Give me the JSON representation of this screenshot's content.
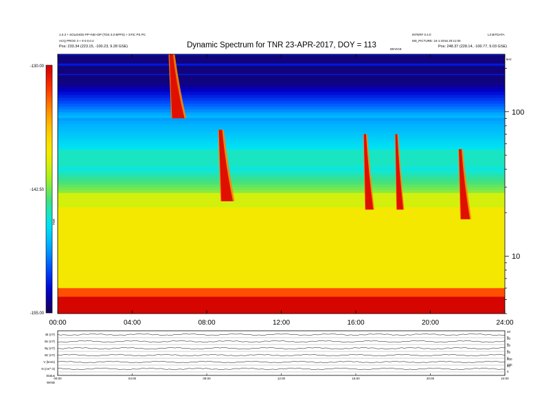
{
  "header": {
    "left_line1": "1.0.3 + SOLIDIOD PP+ND+DP (TDS 3.0 BPPS) + STIC PS PC",
    "left_line2": "ACQ PROG 3 + 9 0.0.0.2",
    "left_line3": "Pos: 233.34 (223.15, -100.23, 9.28 GSE)",
    "right_line1": "INTERF 0.4.0",
    "right_line2": "MS_PICTURE: 24-1-2016 20:11:00",
    "right_line3": "Pos: 248.37 (228.14, -100.77, 9.03 GSE)",
    "right_corner_1": "L3 BITDATA",
    "right_corner_2": "kHz",
    "top_mid_label": "DEVICE"
  },
  "chart_data": [
    {
      "type": "heatmap",
      "title": "Dynamic Spectrum for TNR 23-APR-2017, DOY = 113",
      "xlabel": "",
      "ylabel": "",
      "x_ticks": [
        "00:00",
        "04:00",
        "08:00",
        "12:00",
        "16:00",
        "20:00",
        "24:00"
      ],
      "x_range_hours": [
        0,
        24
      ],
      "y_scale": "log",
      "y_unit_label": "kHz",
      "y_ticks": [
        10,
        100
      ],
      "y_range": [
        4,
        250
      ],
      "colorbar": {
        "label": "TNR",
        "ticks": [
          "-130.00",
          "-142.50",
          "-155.00"
        ],
        "min": -155.0,
        "max": -130.0,
        "colormap": [
          "#1a0050",
          "#0000cc",
          "#0050ff",
          "#00b0ff",
          "#00e8f0",
          "#40e080",
          "#a8f020",
          "#f0f000",
          "#ffd000",
          "#ff9000",
          "#ff3000",
          "#d00000"
        ]
      },
      "radio_bursts": [
        {
          "start_hour": 5.95,
          "end_hour": 6.9,
          "top_khz": 250,
          "bottom_khz": 90
        },
        {
          "start_hour": 8.6,
          "end_hour": 9.5,
          "top_khz": 75,
          "bottom_khz": 24
        },
        {
          "start_hour": 16.4,
          "end_hour": 17.0,
          "top_khz": 70,
          "bottom_khz": 21
        },
        {
          "start_hour": 18.1,
          "end_hour": 18.6,
          "top_khz": 70,
          "bottom_khz": 21
        },
        {
          "start_hour": 21.5,
          "end_hour": 22.2,
          "top_khz": 55,
          "bottom_khz": 18
        }
      ],
      "dark_bands_khz": [
        230,
        195,
        168
      ]
    },
    {
      "type": "line",
      "title": "",
      "panels": [
        {
          "label": "Bt (nT)",
          "right_ticks": [
            "20",
            "0"
          ]
        },
        {
          "label": "Bx (nT)",
          "right_ticks": [
            "20",
            "0"
          ]
        },
        {
          "label": "By (nT)",
          "right_ticks": [
            "20",
            "0"
          ]
        },
        {
          "label": "Bz (nT)",
          "right_ticks": [
            "20",
            "0"
          ]
        },
        {
          "label": "V (km/s)",
          "right_ticks": [
            "800",
            "400"
          ]
        },
        {
          "label": "N (cm^-3)",
          "right_ticks": [
            "50",
            "0"
          ]
        },
        {
          "label": "Status",
          "right_ticks": []
        }
      ],
      "x_ticks": [
        "00:00",
        "04:00",
        "08:00",
        "12:00",
        "16:00",
        "20:00",
        "24:00"
      ],
      "status_label": "Status",
      "status_value": "WIND"
    }
  ]
}
